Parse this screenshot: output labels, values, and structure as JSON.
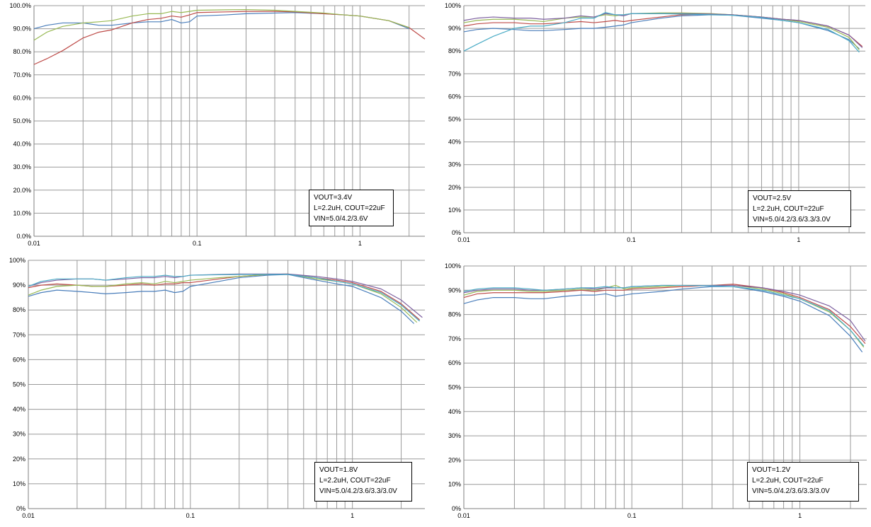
{
  "chart_data": [
    {
      "type": "line",
      "x_scale": "log",
      "xlim": [
        0.01,
        2.5
      ],
      "ylim": [
        0,
        100
      ],
      "xticks": [
        "0.01",
        "0.1",
        "1"
      ],
      "yticks": [
        "0.0%",
        "10.0%",
        "20.0%",
        "30.0%",
        "40.0%",
        "50.0%",
        "60.0%",
        "70.0%",
        "80.0%",
        "90.0%",
        "100.0%"
      ],
      "grid": true,
      "annotation": [
        "VOUT=3.4V",
        "L=2.2uH, COUT=22uF",
        "VIN=5.0/4.2/3.6V"
      ],
      "annotation_position": "bottom-right",
      "series": [
        {
          "color": "#4a7ebb",
          "x": [
            0.01,
            0.012,
            0.015,
            0.02,
            0.025,
            0.03,
            0.04,
            0.05,
            0.06,
            0.07,
            0.08,
            0.09,
            0.1,
            0.15,
            0.2,
            0.3,
            0.4,
            0.6,
            0.8,
            1,
            1.5,
            2
          ],
          "y": [
            90,
            91.5,
            92.5,
            92.5,
            91.5,
            91.5,
            92.5,
            93,
            93,
            94,
            92.5,
            93,
            95.5,
            96,
            96.5,
            96.8,
            97,
            96.5,
            96,
            95.5,
            93.5,
            90
          ]
        },
        {
          "color": "#be4b48",
          "x": [
            0.01,
            0.012,
            0.015,
            0.02,
            0.025,
            0.03,
            0.04,
            0.05,
            0.06,
            0.07,
            0.08,
            0.09,
            0.1,
            0.15,
            0.2,
            0.3,
            0.4,
            0.6,
            0.8,
            1,
            1.5,
            2,
            2.5
          ],
          "y": [
            74.5,
            77,
            80.5,
            86,
            88.5,
            89.5,
            92.5,
            94,
            94.5,
            95.5,
            95,
            96,
            97,
            97.3,
            97.5,
            97.5,
            97.3,
            96.5,
            96,
            95.5,
            93.5,
            90.5,
            85.5
          ]
        },
        {
          "color": "#98b954",
          "x": [
            0.01,
            0.012,
            0.015,
            0.02,
            0.025,
            0.03,
            0.04,
            0.05,
            0.06,
            0.07,
            0.08,
            0.09,
            0.1,
            0.15,
            0.2,
            0.3,
            0.4,
            0.6,
            0.8,
            1,
            1.5,
            2
          ],
          "y": [
            85,
            88.5,
            91,
            92.5,
            93,
            93.5,
            95.5,
            96.5,
            96.5,
            97.5,
            97,
            97.5,
            98,
            98.2,
            98.3,
            98,
            97.5,
            96.8,
            96,
            95.5,
            93.5,
            90.5
          ]
        }
      ]
    },
    {
      "type": "line",
      "x_scale": "log",
      "xlim": [
        0.01,
        2.5
      ],
      "ylim": [
        0,
        100
      ],
      "xticks": [
        "0.01",
        "0.1",
        "1"
      ],
      "yticks": [
        "0%",
        "10%",
        "20%",
        "30%",
        "40%",
        "50%",
        "60%",
        "70%",
        "80%",
        "90%",
        "100%"
      ],
      "grid": true,
      "annotation": [
        "VOUT=2.5V",
        "L=2.2uH, COUT=22uF",
        "VIN=5.0/4.2/3.6/3.3/3.0V"
      ],
      "annotation_position": "bottom-right",
      "series": [
        {
          "color": "#4a7ebb",
          "x": [
            0.01,
            0.012,
            0.015,
            0.02,
            0.025,
            0.03,
            0.04,
            0.05,
            0.06,
            0.07,
            0.08,
            0.09,
            0.1,
            0.15,
            0.2,
            0.3,
            0.4,
            0.6,
            0.8,
            1,
            1.5,
            2,
            2.3
          ],
          "y": [
            88.5,
            89.5,
            90,
            89.5,
            89,
            89,
            89.5,
            90,
            90,
            90.5,
            91,
            91.5,
            92.5,
            94.5,
            95.5,
            96,
            95.8,
            94.5,
            93.5,
            92.5,
            89,
            85,
            81
          ]
        },
        {
          "color": "#be4b48",
          "x": [
            0.01,
            0.012,
            0.015,
            0.02,
            0.025,
            0.03,
            0.04,
            0.05,
            0.06,
            0.07,
            0.08,
            0.09,
            0.1,
            0.15,
            0.2,
            0.3,
            0.4,
            0.6,
            0.8,
            1,
            1.5,
            2,
            2.4
          ],
          "y": [
            91,
            92,
            92.5,
            92.5,
            92,
            92,
            92.5,
            93,
            92.5,
            93,
            93.5,
            93,
            93.5,
            95,
            96,
            96.3,
            96,
            95,
            94,
            93.5,
            91,
            87,
            82
          ]
        },
        {
          "color": "#98b954",
          "x": [
            0.01,
            0.012,
            0.015,
            0.02,
            0.025,
            0.03,
            0.04,
            0.05,
            0.06,
            0.07,
            0.08,
            0.09,
            0.1,
            0.15,
            0.2,
            0.3,
            0.4,
            0.6,
            0.8,
            1,
            1.5,
            2,
            2.3
          ],
          "y": [
            92.5,
            93.5,
            94,
            94,
            93.5,
            93,
            94.5,
            95,
            95,
            96,
            95.5,
            96,
            96.5,
            96.8,
            96.8,
            96.5,
            96,
            95,
            94,
            93,
            90.5,
            86,
            80.5
          ]
        },
        {
          "color": "#7d60a0",
          "x": [
            0.01,
            0.012,
            0.015,
            0.02,
            0.025,
            0.03,
            0.04,
            0.05,
            0.06,
            0.07,
            0.08,
            0.09,
            0.1,
            0.15,
            0.2,
            0.3,
            0.4,
            0.6,
            0.8,
            1,
            1.5,
            2,
            2.4
          ],
          "y": [
            93.5,
            94.5,
            95,
            94.5,
            94.5,
            94,
            94.5,
            95.5,
            95,
            96.5,
            96,
            95.5,
            96.5,
            96.5,
            96.5,
            96.3,
            96,
            95,
            94,
            93.5,
            91,
            87,
            81.5
          ]
        },
        {
          "color": "#4bacc6",
          "x": [
            0.01,
            0.012,
            0.015,
            0.02,
            0.025,
            0.03,
            0.04,
            0.05,
            0.06,
            0.07,
            0.08,
            0.09,
            0.1,
            0.15,
            0.2,
            0.3,
            0.4,
            0.6,
            0.8,
            1,
            1.5,
            2,
            2.3
          ],
          "y": [
            80,
            83,
            86.5,
            90,
            91,
            91,
            92.5,
            94.5,
            94.5,
            97,
            96,
            96,
            96.5,
            96.5,
            96.3,
            96,
            95.8,
            94.8,
            93.5,
            92.5,
            89.5,
            84.5,
            79.5
          ]
        }
      ]
    },
    {
      "type": "line",
      "x_scale": "log",
      "xlim": [
        0.01,
        2.8
      ],
      "ylim": [
        0,
        100
      ],
      "xticks": [
        "0.01",
        "0.1",
        "1"
      ],
      "yticks": [
        "0%",
        "10%",
        "20%",
        "30%",
        "40%",
        "50%",
        "60%",
        "70%",
        "80%",
        "90%",
        "100%"
      ],
      "grid": true,
      "annotation": [
        "VOUT=1.8V",
        "L=2.2uH, COUT=22uF",
        "VIN=5.0/4.2/3.6/3.3/3.0V"
      ],
      "annotation_position": "bottom-right",
      "series": [
        {
          "color": "#4a7ebb",
          "x": [
            0.01,
            0.012,
            0.015,
            0.02,
            0.025,
            0.03,
            0.04,
            0.05,
            0.06,
            0.07,
            0.08,
            0.09,
            0.1,
            0.15,
            0.2,
            0.3,
            0.4,
            0.6,
            0.8,
            1,
            1.5,
            2,
            2.4
          ],
          "y": [
            85.5,
            87,
            88,
            87.5,
            87,
            86.5,
            87,
            87.5,
            87.5,
            88,
            87,
            87.5,
            89.5,
            91.5,
            93,
            94,
            94.3,
            92,
            90.5,
            89.5,
            85,
            79.5,
            74.5
          ]
        },
        {
          "color": "#be4b48",
          "x": [
            0.01,
            0.012,
            0.015,
            0.02,
            0.025,
            0.03,
            0.04,
            0.05,
            0.06,
            0.07,
            0.08,
            0.09,
            0.1,
            0.15,
            0.2,
            0.3,
            0.4,
            0.6,
            0.8,
            1,
            1.5,
            2,
            2.6
          ],
          "y": [
            89,
            90,
            90.5,
            90,
            89.5,
            89.5,
            90,
            90.5,
            90,
            90.5,
            90.5,
            91,
            91,
            92.5,
            93.5,
            94.3,
            94.5,
            93,
            92,
            91,
            87.5,
            82.5,
            76
          ]
        },
        {
          "color": "#98b954",
          "x": [
            0.01,
            0.012,
            0.015,
            0.02,
            0.025,
            0.03,
            0.04,
            0.05,
            0.06,
            0.07,
            0.08,
            0.09,
            0.1,
            0.15,
            0.2,
            0.3,
            0.4,
            0.6,
            0.8,
            1,
            1.5,
            2,
            2.5
          ],
          "y": [
            86,
            88,
            89.5,
            90,
            89.5,
            89.5,
            90.5,
            91,
            90.5,
            91.5,
            91,
            91.5,
            92,
            93,
            93.5,
            94.3,
            94.5,
            92.5,
            91.5,
            90.5,
            86.5,
            81,
            75
          ]
        },
        {
          "color": "#7d60a0",
          "x": [
            0.01,
            0.012,
            0.015,
            0.02,
            0.025,
            0.03,
            0.04,
            0.05,
            0.06,
            0.07,
            0.08,
            0.09,
            0.1,
            0.15,
            0.2,
            0.3,
            0.4,
            0.6,
            0.8,
            1,
            1.5,
            2,
            2.7
          ],
          "y": [
            89.5,
            91,
            92,
            92.5,
            92.5,
            92,
            92.5,
            93,
            93,
            93.5,
            93,
            93.5,
            94,
            94.3,
            94.5,
            94.5,
            94.5,
            93.5,
            92.5,
            91.5,
            88.5,
            84,
            77
          ]
        },
        {
          "color": "#4bacc6",
          "x": [
            0.01,
            0.012,
            0.015,
            0.02,
            0.025,
            0.03,
            0.04,
            0.05,
            0.06,
            0.07,
            0.08,
            0.09,
            0.1,
            0.15,
            0.2,
            0.3,
            0.4,
            0.6,
            0.8,
            1,
            1.5,
            2,
            2.6
          ],
          "y": [
            89.5,
            91.5,
            92.5,
            92.5,
            92.5,
            92,
            93,
            93.5,
            93.5,
            94,
            93.5,
            93.5,
            94,
            94.2,
            94.3,
            94.3,
            94.3,
            93,
            91.5,
            90.5,
            87,
            82,
            75.5
          ]
        }
      ]
    },
    {
      "type": "line",
      "x_scale": "log",
      "xlim": [
        0.01,
        2.5
      ],
      "ylim": [
        0,
        100
      ],
      "xticks": [
        "0.01",
        "0.1",
        "1"
      ],
      "yticks": [
        "0%",
        "10%",
        "20%",
        "30%",
        "40%",
        "50%",
        "60%",
        "70%",
        "80%",
        "90%",
        "100%"
      ],
      "grid": true,
      "annotation": [
        "VOUT=1.2V",
        "L=2.2uH, COUT=22uF",
        "VIN=5.0/4.2/3.6/3.3/3.0V"
      ],
      "annotation_position": "bottom-right",
      "series": [
        {
          "color": "#4a7ebb",
          "x": [
            0.01,
            0.012,
            0.015,
            0.02,
            0.025,
            0.03,
            0.04,
            0.05,
            0.06,
            0.07,
            0.08,
            0.09,
            0.1,
            0.15,
            0.2,
            0.3,
            0.4,
            0.6,
            0.8,
            1,
            1.5,
            2,
            2.35
          ],
          "y": [
            84.5,
            86,
            87,
            87,
            86.5,
            86.5,
            87.5,
            88,
            88,
            88.5,
            87.5,
            88,
            88.5,
            89.5,
            90.5,
            91.5,
            91.5,
            89.5,
            87.5,
            85.5,
            79.5,
            71,
            64.5
          ]
        },
        {
          "color": "#be4b48",
          "x": [
            0.01,
            0.012,
            0.015,
            0.02,
            0.025,
            0.03,
            0.04,
            0.05,
            0.06,
            0.07,
            0.08,
            0.09,
            0.1,
            0.15,
            0.2,
            0.3,
            0.4,
            0.6,
            0.8,
            1,
            1.5,
            2,
            2.45
          ],
          "y": [
            87,
            88.5,
            89,
            89,
            89,
            89,
            89.5,
            90,
            89.5,
            90,
            90,
            90,
            90.5,
            91,
            91.5,
            92,
            92.5,
            91,
            89,
            87,
            82,
            75,
            68
          ]
        },
        {
          "color": "#98b954",
          "x": [
            0.01,
            0.012,
            0.015,
            0.02,
            0.025,
            0.03,
            0.04,
            0.05,
            0.06,
            0.07,
            0.08,
            0.09,
            0.1,
            0.15,
            0.2,
            0.3,
            0.4,
            0.6,
            0.8,
            1,
            1.5,
            2,
            2.4
          ],
          "y": [
            88,
            89.5,
            90,
            90,
            89.5,
            89.5,
            90,
            90.5,
            90,
            91,
            92,
            90.5,
            91,
            91.5,
            92,
            92,
            92,
            90.5,
            88.5,
            86.5,
            81,
            73.5,
            66.5
          ]
        },
        {
          "color": "#7d60a0",
          "x": [
            0.01,
            0.012,
            0.015,
            0.02,
            0.025,
            0.03,
            0.04,
            0.05,
            0.06,
            0.07,
            0.08,
            0.09,
            0.1,
            0.15,
            0.2,
            0.3,
            0.4,
            0.6,
            0.8,
            1,
            1.5,
            2,
            2.45
          ],
          "y": [
            89,
            90,
            90.5,
            90.5,
            90,
            90,
            90.5,
            91,
            90.5,
            91,
            91,
            91,
            91.5,
            92,
            92,
            92,
            92,
            91,
            89.5,
            88,
            83.5,
            77.5,
            69
          ]
        },
        {
          "color": "#4bacc6",
          "x": [
            0.01,
            0.012,
            0.015,
            0.02,
            0.025,
            0.03,
            0.04,
            0.05,
            0.06,
            0.07,
            0.08,
            0.09,
            0.1,
            0.15,
            0.2,
            0.3,
            0.4,
            0.6,
            0.8,
            1,
            1.5,
            2,
            2.4
          ],
          "y": [
            89.5,
            90.5,
            91,
            91,
            90.5,
            90,
            90.5,
            91,
            91,
            91.5,
            91,
            91,
            91.5,
            92,
            92,
            91.8,
            91.5,
            90,
            88,
            86.5,
            81.5,
            73.5,
            67
          ]
        }
      ]
    }
  ]
}
